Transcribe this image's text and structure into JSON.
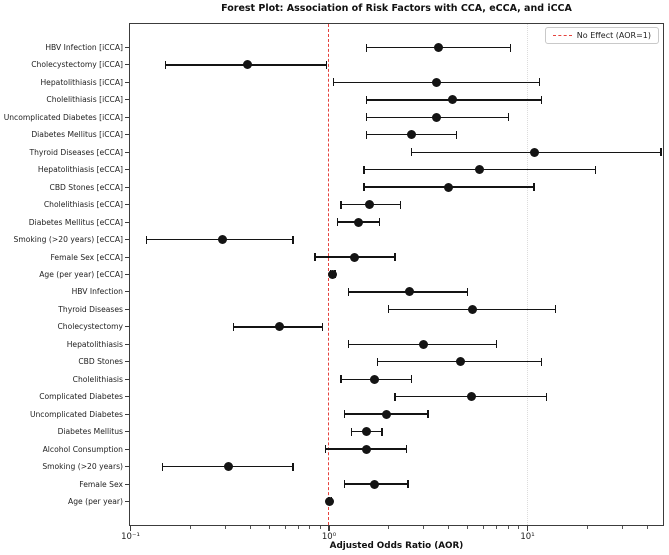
{
  "chart_data": {
    "type": "scatter",
    "subtype": "forest_plot",
    "title": "Forest Plot: Association of Risk Factors with CCA, eCCA, and iCCA",
    "xlabel": "Adjusted Odds Ratio (AOR)",
    "x_scale": "log",
    "xlim": [
      0.097,
      48.7
    ],
    "x_tick_values": [
      0.1,
      1,
      10
    ],
    "x_tick_labels": [
      "10⁻¹",
      "10⁰",
      "10¹"
    ],
    "grid": "vertical dotted at 10^1",
    "legend_position": "upper right",
    "ref_line": {
      "value": 1,
      "legend_label": "No Effect (AOR=1)",
      "color": "#e5423d",
      "style": "dashed"
    },
    "point_color": "#141414",
    "rows": [
      {
        "label": "HBV Infection [iCCA]",
        "aor": 3.55,
        "ci": [
          1.55,
          8.2
        ]
      },
      {
        "label": "Cholecystectomy [iCCA]",
        "aor": 0.39,
        "ci": [
          0.15,
          0.97
        ]
      },
      {
        "label": "Hepatolithiasis [iCCA]",
        "aor": 3.5,
        "ci": [
          1.05,
          11.5
        ]
      },
      {
        "label": "Cholelithiasis [iCCA]",
        "aor": 4.2,
        "ci": [
          1.55,
          11.8
        ]
      },
      {
        "label": "Uncomplicated Diabetes [iCCA]",
        "aor": 3.5,
        "ci": [
          1.55,
          8.0
        ]
      },
      {
        "label": "Diabetes Mellitus [iCCA]",
        "aor": 2.6,
        "ci": [
          1.55,
          4.4
        ]
      },
      {
        "label": "Thyroid Diseases [eCCA]",
        "aor": 10.8,
        "ci": [
          2.6,
          47.0
        ]
      },
      {
        "label": "Hepatolithiasis [eCCA]",
        "aor": 5.7,
        "ci": [
          1.5,
          22.0
        ]
      },
      {
        "label": "CBD Stones [eCCA]",
        "aor": 4.0,
        "ci": [
          1.5,
          10.8
        ]
      },
      {
        "label": "Cholelithiasis [eCCA]",
        "aor": 1.6,
        "ci": [
          1.15,
          2.3
        ]
      },
      {
        "label": "Diabetes Mellitus [eCCA]",
        "aor": 1.4,
        "ci": [
          1.1,
          1.8
        ]
      },
      {
        "label": "Smoking (>20 years) [eCCA]",
        "aor": 0.29,
        "ci": [
          0.12,
          0.66
        ]
      },
      {
        "label": "Female Sex [eCCA]",
        "aor": 1.35,
        "ci": [
          0.85,
          2.15
        ]
      },
      {
        "label": "Age (per year) [eCCA]",
        "aor": 1.04,
        "ci": [
          1.02,
          1.07
        ]
      },
      {
        "label": "HBV Infection",
        "aor": 2.55,
        "ci": [
          1.25,
          5.0
        ]
      },
      {
        "label": "Thyroid Diseases",
        "aor": 5.3,
        "ci": [
          2.0,
          13.8
        ]
      },
      {
        "label": "Cholecystectomy",
        "aor": 0.56,
        "ci": [
          0.33,
          0.93
        ]
      },
      {
        "label": "Hepatolithiasis",
        "aor": 3.0,
        "ci": [
          1.25,
          7.0
        ]
      },
      {
        "label": "CBD Stones",
        "aor": 4.6,
        "ci": [
          1.75,
          11.8
        ]
      },
      {
        "label": "Cholelithiasis",
        "aor": 1.7,
        "ci": [
          1.15,
          2.6
        ]
      },
      {
        "label": "Complicated Diabetes",
        "aor": 5.2,
        "ci": [
          2.15,
          12.5
        ]
      },
      {
        "label": "Uncomplicated Diabetes",
        "aor": 1.95,
        "ci": [
          1.2,
          3.15
        ]
      },
      {
        "label": "Diabetes Mellitus",
        "aor": 1.55,
        "ci": [
          1.3,
          1.85
        ]
      },
      {
        "label": "Alcohol Consumption",
        "aor": 1.55,
        "ci": [
          0.96,
          2.45
        ]
      },
      {
        "label": "Smoking (>20 years)",
        "aor": 0.31,
        "ci": [
          0.145,
          0.66
        ]
      },
      {
        "label": "Female Sex",
        "aor": 1.7,
        "ci": [
          1.2,
          2.5
        ]
      },
      {
        "label": "Age (per year)",
        "aor": 1.01,
        "ci": [
          1.0,
          1.03
        ]
      }
    ]
  }
}
